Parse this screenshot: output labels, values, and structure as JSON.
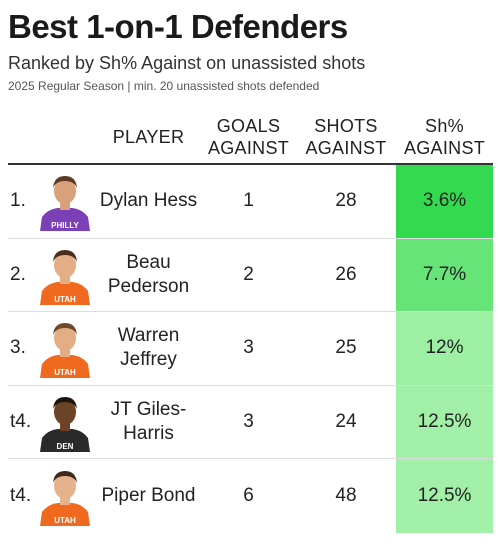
{
  "title": "Best 1-on-1 Defenders",
  "subtitle": "Ranked by Sh% Against on unassisted shots",
  "note": "2025 Regular Season | min. 20 unassisted shots defended",
  "columns": {
    "player": "PLAYER",
    "goals": "GOALS AGAINST",
    "shots": "SHOTS AGAINST",
    "sh": "Sh% AGAINST"
  },
  "chart_data": {
    "type": "table",
    "columns": [
      "PLAYER",
      "GOALS AGAINST",
      "SHOTS AGAINST",
      "Sh% AGAINST"
    ],
    "rows": [
      {
        "rank": "1.",
        "player": "Dylan Hess",
        "goals_against": 1,
        "shots_against": 28,
        "sh_pct_against": "3.6%",
        "sh_value": 3.6
      },
      {
        "rank": "2.",
        "player": "Beau Pederson",
        "goals_against": 2,
        "shots_against": 26,
        "sh_pct_against": "7.7%",
        "sh_value": 7.7
      },
      {
        "rank": "3.",
        "player": "Warren Jeffrey",
        "goals_against": 3,
        "shots_against": 25,
        "sh_pct_against": "12%",
        "sh_value": 12
      },
      {
        "rank": "t4.",
        "player": "JT Giles-Harris",
        "goals_against": 3,
        "shots_against": 24,
        "sh_pct_against": "12.5%",
        "sh_value": 12.5
      },
      {
        "rank": "t4.",
        "player": "Piper Bond",
        "goals_against": 6,
        "shots_against": 48,
        "sh_pct_against": "12.5%",
        "sh_value": 12.5
      }
    ],
    "heat_colors": {
      "best": "#33d94e",
      "worst": "#a2f0a8"
    }
  },
  "jerseys": [
    {
      "jersey_color": "#7b3fb6",
      "skin": "#d9a07c",
      "hair": "#5a3a22",
      "jersey_text": "PHILLY"
    },
    {
      "jersey_color": "#ef6a1f",
      "skin": "#e3ad86",
      "hair": "#4a2e1a",
      "jersey_text": "UTAH"
    },
    {
      "jersey_color": "#ef6a1f",
      "skin": "#e3ad86",
      "hair": "#6b4a2c",
      "jersey_text": "UTAH"
    },
    {
      "jersey_color": "#2a2a2a",
      "skin": "#6b4326",
      "hair": "#1d130c",
      "jersey_text": "DEN"
    },
    {
      "jersey_color": "#ef6a1f",
      "skin": "#e6b28c",
      "hair": "#3e2a1a",
      "jersey_text": "UTAH"
    }
  ]
}
